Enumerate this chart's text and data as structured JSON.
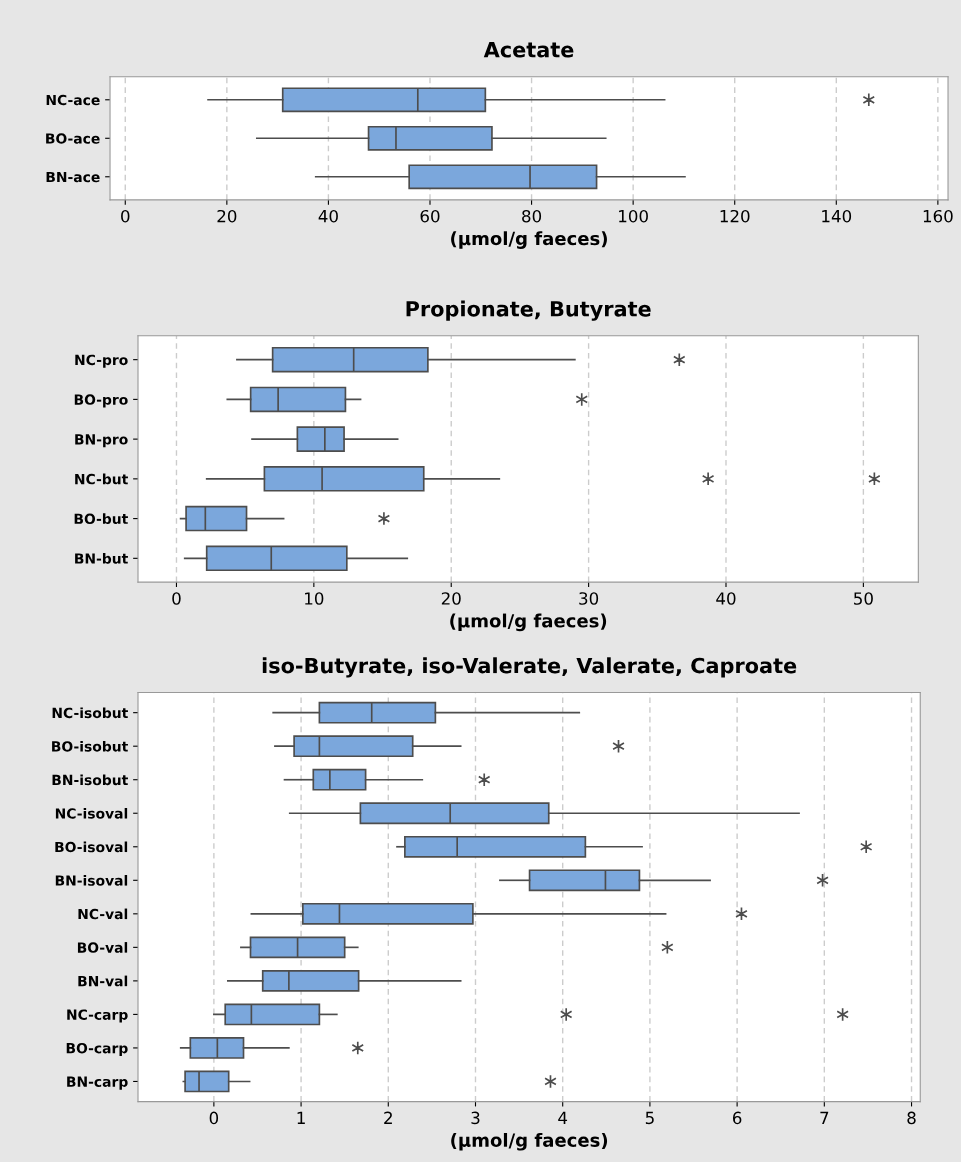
{
  "chart_data": [
    {
      "type": "box",
      "orientation": "horizontal",
      "title": "Acetate",
      "xlabel": "(µmol/g faeces)",
      "grid": "x",
      "categories": [
        "NC-ace",
        "BO-ace",
        "BN-ace"
      ],
      "xlim": [
        -3,
        162
      ],
      "xticks": [
        0,
        20,
        40,
        60,
        80,
        100,
        120,
        140,
        160
      ],
      "series": [
        {
          "color": "#7ba7dc",
          "boxes": [
            {
              "low": 16.3,
              "q1": 31.0,
              "median": 57.6,
              "q3": 70.9,
              "high": 106.2,
              "outliers": [
                146.4
              ]
            },
            {
              "low": 25.9,
              "q1": 47.9,
              "median": 53.3,
              "q3": 72.2,
              "high": 94.6
            },
            {
              "low": 37.5,
              "q1": 55.9,
              "median": 79.7,
              "q3": 92.8,
              "high": 110.2
            }
          ]
        }
      ]
    },
    {
      "type": "box",
      "orientation": "horizontal",
      "title": "Propionate, Butyrate",
      "xlabel": "(µmol/g faeces)",
      "grid": "x",
      "categories": [
        "NC-pro",
        "BO-pro",
        "BN-pro",
        "NC-but",
        "BO-but",
        "BN-but"
      ],
      "xlim": [
        -2.8,
        54
      ],
      "xticks": [
        0,
        10,
        20,
        30,
        40,
        50
      ],
      "series": [
        {
          "color": "#7ba7dc",
          "boxes": [
            {
              "low": 4.4,
              "q1": 7.0,
              "median": 12.9,
              "q3": 18.3,
              "high": 29.0,
              "outliers": [
                36.6
              ]
            },
            {
              "low": 3.7,
              "q1": 5.4,
              "median": 7.4,
              "q3": 12.3,
              "high": 13.4,
              "outliers": [
                29.5
              ]
            },
            {
              "low": 5.5,
              "q1": 8.8,
              "median": 10.8,
              "q3": 12.2,
              "high": 16.1
            },
            {
              "low": 2.2,
              "q1": 6.4,
              "median": 10.6,
              "q3": 18.0,
              "high": 23.5,
              "outliers": [
                38.7,
                50.8
              ]
            },
            {
              "low": 0.3,
              "q1": 0.7,
              "median": 2.1,
              "q3": 5.1,
              "high": 7.8,
              "outliers": [
                15.1
              ]
            },
            {
              "low": 0.6,
              "q1": 2.2,
              "median": 6.9,
              "q3": 12.4,
              "high": 16.8
            }
          ]
        }
      ]
    },
    {
      "type": "box",
      "orientation": "horizontal",
      "title": "iso-Butyrate, iso-Valerate, Valerate, Caproate",
      "xlabel": "(µmol/g faeces)",
      "grid": "x",
      "categories": [
        "NC-isobut",
        "BO-isobut",
        "BN-isobut",
        "NC-isoval",
        "BO-isoval",
        "BN-isoval",
        "NC-val",
        "BO-val",
        "BN-val",
        "NC-carp",
        "BO-carp",
        "BN-carp"
      ],
      "xlim": [
        -0.87,
        8.1
      ],
      "xticks": [
        0,
        1,
        2,
        3,
        4,
        5,
        6,
        7,
        8
      ],
      "series": [
        {
          "color": "#7ba7dc",
          "boxes": [
            {
              "low": 0.68,
              "q1": 1.21,
              "median": 1.81,
              "q3": 2.54,
              "high": 4.19
            },
            {
              "low": 0.7,
              "q1": 0.92,
              "median": 1.21,
              "q3": 2.28,
              "high": 2.83,
              "outliers": [
                4.64
              ]
            },
            {
              "low": 0.81,
              "q1": 1.14,
              "median": 1.33,
              "q3": 1.74,
              "high": 2.39,
              "outliers": [
                3.1
              ]
            },
            {
              "low": 0.87,
              "q1": 1.68,
              "median": 2.71,
              "q3": 3.84,
              "high": 6.71
            },
            {
              "low": 2.1,
              "q1": 2.19,
              "median": 2.79,
              "q3": 4.26,
              "high": 4.91,
              "outliers": [
                7.48
              ]
            },
            {
              "low": 3.28,
              "q1": 3.62,
              "median": 4.49,
              "q3": 4.88,
              "high": 5.69,
              "outliers": [
                6.98
              ]
            },
            {
              "low": 0.43,
              "q1": 1.02,
              "median": 1.44,
              "q3": 2.97,
              "high": 5.18,
              "outliers": [
                6.05
              ]
            },
            {
              "low": 0.31,
              "q1": 0.42,
              "median": 0.96,
              "q3": 1.5,
              "high": 1.65,
              "outliers": [
                5.2
              ]
            },
            {
              "low": 0.16,
              "q1": 0.56,
              "median": 0.86,
              "q3": 1.66,
              "high": 2.83
            },
            {
              "low": 0.0,
              "q1": 0.13,
              "median": 0.43,
              "q3": 1.21,
              "high": 1.41,
              "outliers": [
                4.04,
                7.21
              ]
            },
            {
              "low": -0.38,
              "q1": -0.27,
              "median": 0.04,
              "q3": 0.34,
              "high": 0.86,
              "outliers": [
                1.65
              ]
            },
            {
              "low": -0.35,
              "q1": -0.33,
              "median": -0.17,
              "q3": 0.17,
              "high": 0.41,
              "outliers": [
                3.86
              ]
            }
          ]
        }
      ]
    }
  ]
}
